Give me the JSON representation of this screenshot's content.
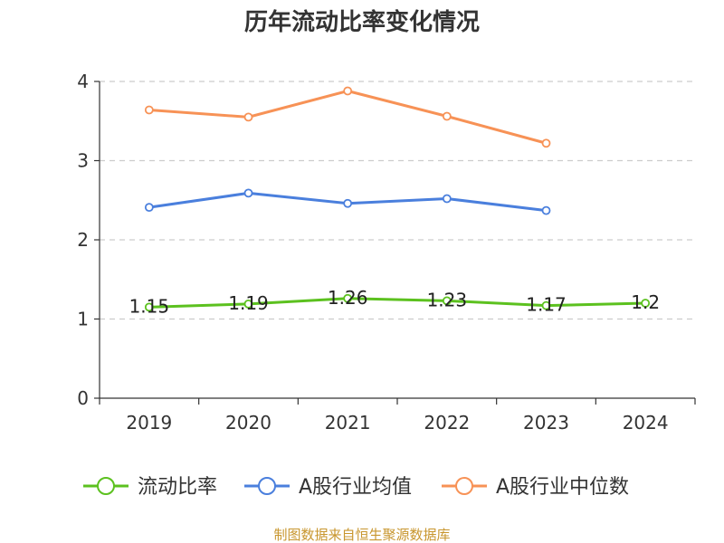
{
  "chart_data": {
    "type": "line",
    "title": "历年流动比率变化情况",
    "xlabel": "",
    "ylabel": "",
    "categories": [
      "2019",
      "2020",
      "2021",
      "2022",
      "2023",
      "2024"
    ],
    "ylim": [
      0,
      4
    ],
    "yticks": [
      "0",
      "1",
      "2",
      "3",
      "4"
    ],
    "grid": true,
    "legend_position": "bottom",
    "series": [
      {
        "name": "流动比率",
        "color": "#5cc11f",
        "values": [
          1.15,
          1.19,
          1.26,
          1.23,
          1.17,
          1.2
        ],
        "labels": [
          "1.15",
          "1.19",
          "1.26",
          "1.23",
          "1.17",
          "1.2"
        ]
      },
      {
        "name": "A股行业均值",
        "color": "#4a7fdd",
        "values": [
          2.41,
          2.59,
          2.46,
          2.52,
          2.37,
          null
        ]
      },
      {
        "name": "A股行业中位数",
        "color": "#f79256",
        "values": [
          3.64,
          3.55,
          3.88,
          3.56,
          3.22,
          null
        ]
      }
    ]
  },
  "source_text": "制图数据来自恒生聚源数据库"
}
